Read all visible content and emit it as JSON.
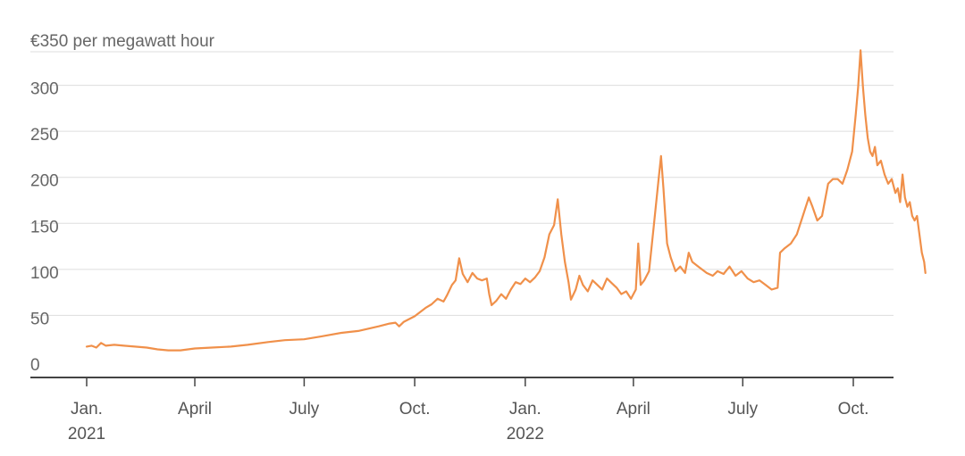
{
  "chart_data": {
    "type": "line",
    "title": "",
    "unit_label": "€350 per megawatt hour",
    "xlabel": "",
    "ylabel": "",
    "ylim": [
      0,
      350
    ],
    "y_ticks": [
      0,
      50,
      100,
      150,
      200,
      250,
      300
    ],
    "y_tick_labels": [
      "0",
      "50",
      "100",
      "150",
      "200",
      "250",
      "300"
    ],
    "x_ticks": [
      {
        "date": "2021-01-01",
        "label": "Jan.",
        "year": "2021"
      },
      {
        "date": "2021-04-01",
        "label": "April",
        "year": ""
      },
      {
        "date": "2021-07-01",
        "label": "July",
        "year": ""
      },
      {
        "date": "2021-10-01",
        "label": "Oct.",
        "year": ""
      },
      {
        "date": "2022-01-01",
        "label": "Jan.",
        "year": "2022"
      },
      {
        "date": "2022-04-01",
        "label": "April",
        "year": ""
      },
      {
        "date": "2022-07-01",
        "label": "July",
        "year": ""
      },
      {
        "date": "2022-10-01",
        "label": "Oct.",
        "year": ""
      }
    ],
    "xlim": [
      "2020-12-01",
      "2022-11-30"
    ],
    "grid": "horizontal",
    "series": [
      {
        "name": "",
        "color": "#f0904a",
        "points": [
          [
            "2021-01-01",
            18
          ],
          [
            "2021-01-05",
            19
          ],
          [
            "2021-01-09",
            17
          ],
          [
            "2021-01-13",
            22
          ],
          [
            "2021-01-17",
            19
          ],
          [
            "2021-01-24",
            20
          ],
          [
            "2021-02-01",
            19
          ],
          [
            "2021-02-10",
            18
          ],
          [
            "2021-02-20",
            17
          ],
          [
            "2021-03-01",
            15
          ],
          [
            "2021-03-10",
            14
          ],
          [
            "2021-03-20",
            14
          ],
          [
            "2021-04-01",
            16
          ],
          [
            "2021-04-15",
            17
          ],
          [
            "2021-05-01",
            18
          ],
          [
            "2021-05-15",
            20
          ],
          [
            "2021-06-01",
            23
          ],
          [
            "2021-06-15",
            25
          ],
          [
            "2021-07-01",
            26
          ],
          [
            "2021-07-15",
            29
          ],
          [
            "2021-08-01",
            33
          ],
          [
            "2021-08-15",
            35
          ],
          [
            "2021-09-01",
            40
          ],
          [
            "2021-09-10",
            43
          ],
          [
            "2021-09-15",
            44
          ],
          [
            "2021-09-18",
            40
          ],
          [
            "2021-09-22",
            45
          ],
          [
            "2021-10-01",
            51
          ],
          [
            "2021-10-10",
            60
          ],
          [
            "2021-10-15",
            64
          ],
          [
            "2021-10-20",
            70
          ],
          [
            "2021-10-25",
            67
          ],
          [
            "2021-10-28",
            74
          ],
          [
            "2021-11-01",
            85
          ],
          [
            "2021-11-04",
            90
          ],
          [
            "2021-11-07",
            114
          ],
          [
            "2021-11-10",
            97
          ],
          [
            "2021-11-14",
            88
          ],
          [
            "2021-11-18",
            98
          ],
          [
            "2021-11-22",
            92
          ],
          [
            "2021-11-26",
            90
          ],
          [
            "2021-11-30",
            92
          ],
          [
            "2021-12-02",
            75
          ],
          [
            "2021-12-04",
            63
          ],
          [
            "2021-12-08",
            68
          ],
          [
            "2021-12-12",
            75
          ],
          [
            "2021-12-16",
            70
          ],
          [
            "2021-12-20",
            80
          ],
          [
            "2021-12-24",
            88
          ],
          [
            "2021-12-28",
            86
          ],
          [
            "2022-01-01",
            92
          ],
          [
            "2022-01-05",
            88
          ],
          [
            "2022-01-09",
            93
          ],
          [
            "2022-01-13",
            100
          ],
          [
            "2022-01-17",
            115
          ],
          [
            "2022-01-21",
            140
          ],
          [
            "2022-01-25",
            150
          ],
          [
            "2022-01-28",
            178
          ],
          [
            "2022-01-31",
            140
          ],
          [
            "2022-02-03",
            110
          ],
          [
            "2022-02-06",
            88
          ],
          [
            "2022-02-08",
            69
          ],
          [
            "2022-02-12",
            80
          ],
          [
            "2022-02-15",
            95
          ],
          [
            "2022-02-18",
            85
          ],
          [
            "2022-02-22",
            78
          ],
          [
            "2022-02-26",
            90
          ],
          [
            "2022-03-02",
            85
          ],
          [
            "2022-03-06",
            80
          ],
          [
            "2022-03-10",
            92
          ],
          [
            "2022-03-14",
            87
          ],
          [
            "2022-03-18",
            82
          ],
          [
            "2022-03-22",
            75
          ],
          [
            "2022-03-26",
            78
          ],
          [
            "2022-03-30",
            70
          ],
          [
            "2022-04-03",
            80
          ],
          [
            "2022-04-05",
            130
          ],
          [
            "2022-04-07",
            85
          ],
          [
            "2022-04-10",
            90
          ],
          [
            "2022-04-14",
            100
          ],
          [
            "2022-04-18",
            150
          ],
          [
            "2022-04-22",
            200
          ],
          [
            "2022-04-24",
            225
          ],
          [
            "2022-04-26",
            190
          ],
          [
            "2022-04-29",
            130
          ],
          [
            "2022-05-02",
            115
          ],
          [
            "2022-05-06",
            100
          ],
          [
            "2022-05-10",
            105
          ],
          [
            "2022-05-14",
            98
          ],
          [
            "2022-05-17",
            120
          ],
          [
            "2022-05-20",
            110
          ],
          [
            "2022-05-25",
            105
          ],
          [
            "2022-06-01",
            98
          ],
          [
            "2022-06-06",
            95
          ],
          [
            "2022-06-10",
            100
          ],
          [
            "2022-06-15",
            97
          ],
          [
            "2022-06-20",
            105
          ],
          [
            "2022-06-25",
            95
          ],
          [
            "2022-06-30",
            100
          ],
          [
            "2022-07-05",
            92
          ],
          [
            "2022-07-10",
            88
          ],
          [
            "2022-07-15",
            90
          ],
          [
            "2022-07-20",
            85
          ],
          [
            "2022-07-25",
            80
          ],
          [
            "2022-07-30",
            82
          ],
          [
            "2022-08-01",
            120
          ],
          [
            "2022-08-05",
            125
          ],
          [
            "2022-08-10",
            130
          ],
          [
            "2022-08-15",
            140
          ],
          [
            "2022-08-20",
            160
          ],
          [
            "2022-08-25",
            180
          ],
          [
            "2022-08-28",
            170
          ],
          [
            "2022-09-01",
            155
          ],
          [
            "2022-09-05",
            160
          ],
          [
            "2022-09-10",
            195
          ],
          [
            "2022-09-14",
            200
          ],
          [
            "2022-09-18",
            200
          ],
          [
            "2022-09-22",
            195
          ],
          [
            "2022-09-26",
            210
          ],
          [
            "2022-09-30",
            230
          ],
          [
            "2022-10-03",
            270
          ],
          [
            "2022-10-05",
            300
          ],
          [
            "2022-10-07",
            340
          ],
          [
            "2022-10-09",
            300
          ],
          [
            "2022-10-11",
            270
          ],
          [
            "2022-10-13",
            245
          ],
          [
            "2022-10-15",
            230
          ],
          [
            "2022-10-17",
            225
          ],
          [
            "2022-10-19",
            235
          ],
          [
            "2022-10-21",
            215
          ],
          [
            "2022-10-24",
            220
          ],
          [
            "2022-10-27",
            205
          ],
          [
            "2022-10-30",
            195
          ],
          [
            "2022-11-02",
            200
          ],
          [
            "2022-11-05",
            185
          ],
          [
            "2022-11-07",
            190
          ],
          [
            "2022-11-09",
            175
          ],
          [
            "2022-11-11",
            205
          ],
          [
            "2022-11-13",
            180
          ],
          [
            "2022-11-15",
            170
          ],
          [
            "2022-11-17",
            175
          ],
          [
            "2022-11-19",
            160
          ],
          [
            "2022-11-21",
            155
          ],
          [
            "2022-11-23",
            160
          ],
          [
            "2022-11-25",
            140
          ],
          [
            "2022-11-27",
            120
          ],
          [
            "2022-11-29",
            110
          ],
          [
            "2022-11-30",
            98
          ]
        ]
      }
    ]
  }
}
